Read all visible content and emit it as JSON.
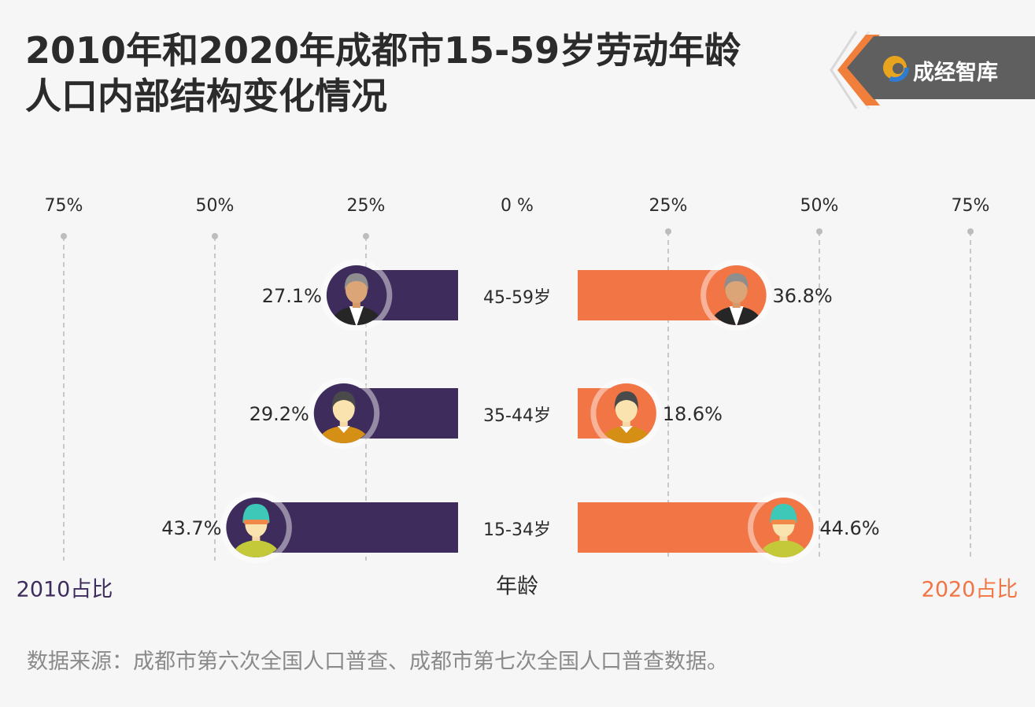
{
  "title_lines": [
    "2010年和2020年成都市15-59岁劳动年龄",
    "人口内部结构变化情况"
  ],
  "brand": {
    "name": "成经智库",
    "icon": "cjzk-logo-icon"
  },
  "source_note": "数据来源：成都市第六次全国人口普查、成都市第七次全国人口普查数据。",
  "colors": {
    "left": "#3e2c5c",
    "right": "#f27545",
    "text": "#2b2b2b",
    "grid": "#bdbdbd"
  },
  "chart_data": {
    "type": "bar",
    "orientation": "horizontal-butterfly",
    "categories": [
      "45-59岁",
      "35-44岁",
      "15-34岁"
    ],
    "category_label": "年龄",
    "series": [
      {
        "name": "2010占比",
        "side": "left",
        "values": [
          27.1,
          29.2,
          43.7
        ],
        "labels": [
          "27.1%",
          "29.2%",
          "43.7%"
        ]
      },
      {
        "name": "2020占比",
        "side": "right",
        "values": [
          36.8,
          18.6,
          44.6
        ],
        "labels": [
          "36.8%",
          "18.6%",
          "44.6%"
        ]
      }
    ],
    "ticks_left": [
      "75%",
      "50%",
      "25%",
      "0 %"
    ],
    "ticks_right": [
      "25%",
      "50%",
      "75%"
    ],
    "xlim": [
      0,
      75
    ],
    "grid": true,
    "avatar_icons": [
      "older-person-icon",
      "middle-aged-person-icon",
      "young-person-cap-icon"
    ]
  }
}
